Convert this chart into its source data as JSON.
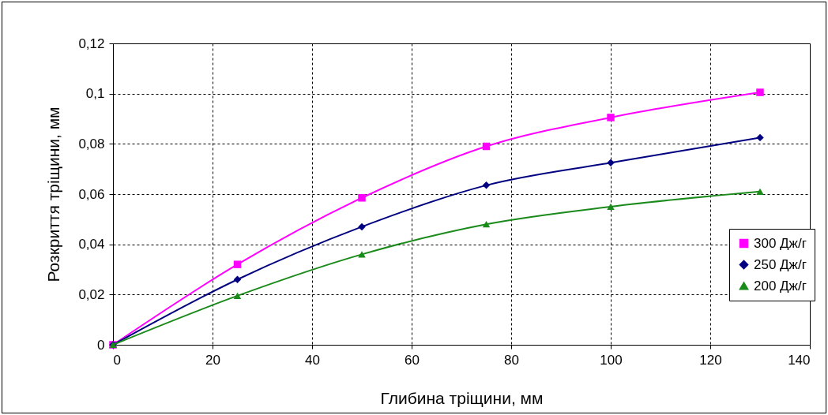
{
  "chart_data": {
    "type": "line",
    "xlabel": "Глибина тріщини, мм",
    "ylabel": "Розкриття тріщини, мм",
    "x": [
      0,
      25,
      50,
      75,
      100,
      130
    ],
    "series": [
      {
        "name": "300 Дж/г",
        "color": "#ff00ff",
        "marker": "square",
        "values": [
          0,
          0.032,
          0.0585,
          0.079,
          0.0905,
          0.1005
        ]
      },
      {
        "name": "250 Дж/г",
        "color": "#000080",
        "marker": "diamond",
        "values": [
          0,
          0.026,
          0.047,
          0.0635,
          0.0725,
          0.0825
        ]
      },
      {
        "name": "200 Дж/г",
        "color": "#1a8a1a",
        "marker": "triangle",
        "values": [
          0,
          0.0195,
          0.036,
          0.048,
          0.055,
          0.061
        ]
      }
    ],
    "xlim": [
      0,
      140
    ],
    "xticks": [
      0,
      20,
      40,
      60,
      80,
      100,
      120,
      140
    ],
    "ylim": [
      0,
      0.12
    ],
    "yticks": [
      0,
      {
        "value": 0.02,
        "label": "0,02"
      },
      {
        "value": 0.04,
        "label": "0,04"
      },
      {
        "value": 0.06,
        "label": "0,06"
      },
      {
        "value": 0.08,
        "label": "0,08"
      },
      {
        "value": 0.1,
        "label": "0,1"
      },
      {
        "value": 0.12,
        "label": "0,12"
      }
    ],
    "grid": true,
    "legend": "right",
    "line_style": "solid"
  }
}
